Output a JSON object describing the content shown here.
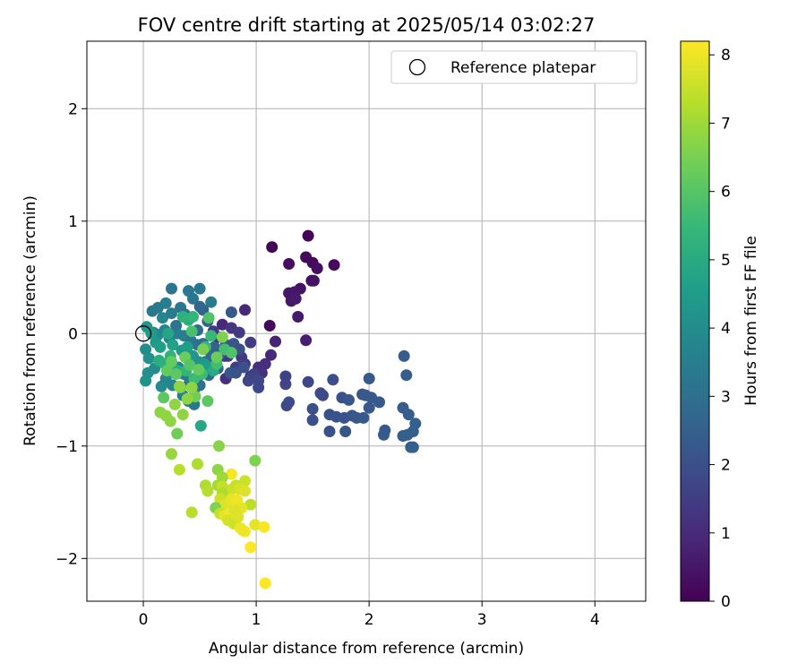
{
  "chart_data": {
    "type": "scatter",
    "title": "FOV centre drift starting at 2025/05/14 03:02:27",
    "xlabel": "Angular distance from reference (arcmin)",
    "ylabel": "Rotation from reference (arcmin)",
    "xlim": [
      -0.5,
      4.45
    ],
    "ylim": [
      -2.38,
      2.6
    ],
    "xticks": [
      0,
      1,
      2,
      3,
      4
    ],
    "xtick_labels": [
      "0",
      "1",
      "2",
      "3",
      "4"
    ],
    "yticks": [
      2,
      1,
      0,
      -1,
      -2
    ],
    "ytick_labels": [
      "2",
      "1",
      "0",
      "−1",
      "−2"
    ],
    "grid": true,
    "legend": {
      "label": "Reference platepar",
      "placement": "top-right"
    },
    "reference_point": {
      "x": 0,
      "y": 0
    },
    "colorbar": {
      "label": "Hours from first FF file",
      "range": [
        0,
        8.2
      ],
      "ticks": [
        8,
        7,
        6,
        5,
        4,
        3,
        2,
        1,
        0
      ],
      "tick_labels": [
        "8",
        "7",
        "6",
        "5",
        "4",
        "3",
        "2",
        "1",
        "0"
      ],
      "colormap": "viridis",
      "stops": [
        "#440154",
        "#482878",
        "#3e4989",
        "#31688e",
        "#26828e",
        "#1f9e89",
        "#35b779",
        "#6ece58",
        "#b5de2b",
        "#fde725"
      ]
    },
    "points": [
      {
        "x": 1.14,
        "y": 0.77,
        "c": 0.1
      },
      {
        "x": 1.46,
        "y": 0.87,
        "c": 0.1
      },
      {
        "x": 1.44,
        "y": 0.68,
        "c": 0.2
      },
      {
        "x": 1.5,
        "y": 0.63,
        "c": 0.2
      },
      {
        "x": 1.54,
        "y": 0.58,
        "c": 0.3
      },
      {
        "x": 1.69,
        "y": 0.61,
        "c": 0.2
      },
      {
        "x": 1.29,
        "y": 0.62,
        "c": 0.3
      },
      {
        "x": 1.49,
        "y": 0.47,
        "c": 0.4
      },
      {
        "x": 1.51,
        "y": 0.47,
        "c": 0.4
      },
      {
        "x": 1.39,
        "y": 0.4,
        "c": 0.4
      },
      {
        "x": 1.34,
        "y": 0.37,
        "c": 0.5
      },
      {
        "x": 1.29,
        "y": 0.36,
        "c": 0.5
      },
      {
        "x": 1.31,
        "y": 0.29,
        "c": 0.5
      },
      {
        "x": 1.35,
        "y": 0.31,
        "c": 0.6
      },
      {
        "x": 1.37,
        "y": 0.15,
        "c": 0.6
      },
      {
        "x": 1.12,
        "y": 0.07,
        "c": 0.2
      },
      {
        "x": 1.44,
        "y": -0.06,
        "c": 0.7
      },
      {
        "x": 1.17,
        "y": -0.07,
        "c": 0.8
      },
      {
        "x": 0.9,
        "y": 0.21,
        "c": 0.9
      },
      {
        "x": 1.13,
        "y": -0.19,
        "c": 0.9
      },
      {
        "x": 1.08,
        "y": -0.27,
        "c": 1.1
      },
      {
        "x": 1.02,
        "y": -0.3,
        "c": 1.1
      },
      {
        "x": 1.05,
        "y": -0.35,
        "c": 1.2
      },
      {
        "x": 0.95,
        "y": -0.38,
        "c": 1.3
      },
      {
        "x": 0.87,
        "y": -0.21,
        "c": 1.4
      },
      {
        "x": 0.9,
        "y": -0.27,
        "c": 1.5
      },
      {
        "x": 0.82,
        "y": -0.3,
        "c": 1.5
      },
      {
        "x": 0.75,
        "y": -0.2,
        "c": 1.6
      },
      {
        "x": 0.98,
        "y": -0.36,
        "c": 1.6
      },
      {
        "x": 0.93,
        "y": -0.42,
        "c": 1.7
      },
      {
        "x": 1.02,
        "y": -0.48,
        "c": 1.8
      },
      {
        "x": 1.02,
        "y": -0.42,
        "c": 1.8
      },
      {
        "x": 0.73,
        "y": -0.4,
        "c": 1.1
      },
      {
        "x": 0.72,
        "y": -0.2,
        "c": 1.3
      },
      {
        "x": 0.7,
        "y": 0.08,
        "c": 1.0
      },
      {
        "x": 0.66,
        "y": -0.03,
        "c": 1.2
      },
      {
        "x": 0.78,
        "y": 0.05,
        "c": 1.3
      },
      {
        "x": 0.85,
        "y": 0.01,
        "c": 1.4
      },
      {
        "x": 0.95,
        "y": -0.08,
        "c": 1.5
      },
      {
        "x": 0.62,
        "y": 0.02,
        "c": 1.4
      },
      {
        "x": 1.26,
        "y": -0.38,
        "c": 1.6
      },
      {
        "x": 1.26,
        "y": -0.45,
        "c": 1.7
      },
      {
        "x": 1.27,
        "y": -0.64,
        "c": 1.8
      },
      {
        "x": 1.29,
        "y": -0.61,
        "c": 1.9
      },
      {
        "x": 1.46,
        "y": -0.43,
        "c": 1.8
      },
      {
        "x": 1.57,
        "y": -0.53,
        "c": 1.9
      },
      {
        "x": 1.59,
        "y": -0.55,
        "c": 1.9
      },
      {
        "x": 1.5,
        "y": -0.67,
        "c": 2.0
      },
      {
        "x": 1.5,
        "y": -0.77,
        "c": 2.0
      },
      {
        "x": 1.65,
        "y": -0.72,
        "c": 2.1
      },
      {
        "x": 1.65,
        "y": -0.87,
        "c": 2.1
      },
      {
        "x": 1.68,
        "y": -0.41,
        "c": 2.0
      },
      {
        "x": 1.71,
        "y": -0.74,
        "c": 2.1
      },
      {
        "x": 1.76,
        "y": -0.57,
        "c": 2.1
      },
      {
        "x": 1.78,
        "y": -0.75,
        "c": 2.1
      },
      {
        "x": 1.79,
        "y": -0.87,
        "c": 2.2
      },
      {
        "x": 1.82,
        "y": -0.59,
        "c": 2.2
      },
      {
        "x": 1.85,
        "y": -0.73,
        "c": 2.2
      },
      {
        "x": 1.89,
        "y": -0.75,
        "c": 2.2
      },
      {
        "x": 1.94,
        "y": -0.54,
        "c": 2.2
      },
      {
        "x": 1.95,
        "y": -0.75,
        "c": 2.3
      },
      {
        "x": 1.97,
        "y": -0.55,
        "c": 2.3
      },
      {
        "x": 2.0,
        "y": -0.4,
        "c": 2.3
      },
      {
        "x": 2.02,
        "y": -0.57,
        "c": 2.3
      },
      {
        "x": 2.0,
        "y": -0.66,
        "c": 2.3
      },
      {
        "x": 2.09,
        "y": -0.61,
        "c": 2.3
      },
      {
        "x": 2.13,
        "y": -0.9,
        "c": 2.3
      },
      {
        "x": 2.14,
        "y": -0.86,
        "c": 2.3
      },
      {
        "x": 2.31,
        "y": -0.2,
        "c": 2.4
      },
      {
        "x": 2.33,
        "y": -0.37,
        "c": 2.4
      },
      {
        "x": 2.3,
        "y": -0.66,
        "c": 2.4
      },
      {
        "x": 2.35,
        "y": -0.72,
        "c": 2.4
      },
      {
        "x": 2.3,
        "y": -0.91,
        "c": 2.4
      },
      {
        "x": 2.34,
        "y": -0.9,
        "c": 2.5
      },
      {
        "x": 2.39,
        "y": -0.87,
        "c": 2.5
      },
      {
        "x": 2.41,
        "y": -0.8,
        "c": 2.5
      },
      {
        "x": 2.37,
        "y": -1.01,
        "c": 2.5
      },
      {
        "x": 2.39,
        "y": -1.01,
        "c": 2.5
      },
      {
        "x": 0.5,
        "y": 0.4,
        "c": 3.3
      },
      {
        "x": 0.4,
        "y": 0.38,
        "c": 3.3
      },
      {
        "x": 0.25,
        "y": 0.4,
        "c": 3.2
      },
      {
        "x": 0.6,
        "y": 0.28,
        "c": 3.4
      },
      {
        "x": 0.44,
        "y": 0.31,
        "c": 3.2
      },
      {
        "x": 0.2,
        "y": 0.27,
        "c": 3.5
      },
      {
        "x": 0.13,
        "y": 0.23,
        "c": 3.4
      },
      {
        "x": 0.08,
        "y": 0.2,
        "c": 3.3
      },
      {
        "x": 0.33,
        "y": 0.23,
        "c": 3.3
      },
      {
        "x": 0.53,
        "y": 0.21,
        "c": 2.5
      },
      {
        "x": 0.78,
        "y": 0.19,
        "c": 2.3
      },
      {
        "x": 0.17,
        "y": 0.14,
        "c": 3.8
      },
      {
        "x": 0.37,
        "y": 0.17,
        "c": 3.0
      },
      {
        "x": 0.57,
        "y": 0.11,
        "c": 2.6
      },
      {
        "x": 0.48,
        "y": 0.03,
        "c": 2.8
      },
      {
        "x": 0.29,
        "y": 0.07,
        "c": 3.1
      },
      {
        "x": 0.03,
        "y": 0.06,
        "c": 4.3
      },
      {
        "x": 0.09,
        "y": 0.01,
        "c": 4.1
      },
      {
        "x": 0.13,
        "y": -0.01,
        "c": 3.9
      },
      {
        "x": 0.19,
        "y": 0.03,
        "c": 3.7
      },
      {
        "x": 0.23,
        "y": -0.04,
        "c": 3.6
      },
      {
        "x": 0.3,
        "y": 0.0,
        "c": 3.4
      },
      {
        "x": 0.36,
        "y": -0.02,
        "c": 3.5
      },
      {
        "x": 0.42,
        "y": -0.06,
        "c": 3.3
      },
      {
        "x": 0.48,
        "y": -0.1,
        "c": 3.1
      },
      {
        "x": 0.53,
        "y": -0.09,
        "c": 2.9
      },
      {
        "x": 0.58,
        "y": -0.15,
        "c": 2.7
      },
      {
        "x": 0.63,
        "y": -0.12,
        "c": 2.6
      },
      {
        "x": 0.68,
        "y": -0.18,
        "c": 2.4
      },
      {
        "x": 0.73,
        "y": -0.1,
        "c": 2.3
      },
      {
        "x": 0.8,
        "y": -0.09,
        "c": 2.2
      },
      {
        "x": 0.85,
        "y": -0.14,
        "c": 2.0
      },
      {
        "x": 0.89,
        "y": -0.3,
        "c": 2.0
      },
      {
        "x": 0.77,
        "y": -0.35,
        "c": 2.2
      },
      {
        "x": 0.82,
        "y": -0.35,
        "c": 2.1
      },
      {
        "x": 0.66,
        "y": -0.31,
        "c": 2.6
      },
      {
        "x": 0.58,
        "y": -0.37,
        "c": 2.9
      },
      {
        "x": 0.02,
        "y": -0.14,
        "c": 4.0
      },
      {
        "x": 0.05,
        "y": -0.22,
        "c": 4.1
      },
      {
        "x": 0.04,
        "y": -0.35,
        "c": 4.1
      },
      {
        "x": 0.02,
        "y": -0.42,
        "c": 4.2
      },
      {
        "x": 0.1,
        "y": -0.31,
        "c": 4.0
      },
      {
        "x": 0.16,
        "y": -0.47,
        "c": 3.9
      },
      {
        "x": 0.2,
        "y": -0.4,
        "c": 3.8
      },
      {
        "x": 0.26,
        "y": -0.46,
        "c": 3.7
      },
      {
        "x": 0.31,
        "y": -0.3,
        "c": 3.6
      },
      {
        "x": 0.36,
        "y": -0.36,
        "c": 3.4
      },
      {
        "x": 0.41,
        "y": -0.43,
        "c": 3.3
      },
      {
        "x": 0.45,
        "y": -0.5,
        "c": 3.2
      },
      {
        "x": 0.35,
        "y": -0.55,
        "c": 3.5
      },
      {
        "x": 0.4,
        "y": -0.6,
        "c": 3.4
      },
      {
        "x": 0.45,
        "y": -0.63,
        "c": 3.3
      },
      {
        "x": 0.5,
        "y": -0.46,
        "c": 3.1
      },
      {
        "x": 0.55,
        "y": -0.25,
        "c": 3.0
      },
      {
        "x": 0.6,
        "y": -0.22,
        "c": 2.8
      },
      {
        "x": 0.5,
        "y": 0.24,
        "c": 2.7
      },
      {
        "x": 0.25,
        "y": 0.18,
        "c": 3.4
      },
      {
        "x": 0.07,
        "y": 0.0,
        "c": 4.5
      },
      {
        "x": 0.11,
        "y": -0.08,
        "c": 4.4
      },
      {
        "x": 0.15,
        "y": -0.12,
        "c": 4.6
      },
      {
        "x": 0.22,
        "y": 0.0,
        "c": 4.8
      },
      {
        "x": 0.26,
        "y": -0.1,
        "c": 4.7
      },
      {
        "x": 0.34,
        "y": -0.15,
        "c": 4.4
      },
      {
        "x": 0.39,
        "y": -0.12,
        "c": 4.6
      },
      {
        "x": 0.44,
        "y": -0.2,
        "c": 4.3
      },
      {
        "x": 0.49,
        "y": -0.25,
        "c": 4.2
      },
      {
        "x": 0.54,
        "y": -0.27,
        "c": 4.4
      },
      {
        "x": 0.59,
        "y": -0.3,
        "c": 4.6
      },
      {
        "x": 0.62,
        "y": -0.33,
        "c": 5.0
      },
      {
        "x": 0.4,
        "y": 0.12,
        "c": 5.1
      },
      {
        "x": 0.35,
        "y": 0.15,
        "c": 5.2
      },
      {
        "x": 0.44,
        "y": 0.15,
        "c": 5.4
      },
      {
        "x": 0.51,
        "y": -0.82,
        "c": 4.9
      },
      {
        "x": 0.14,
        "y": -0.24,
        "c": 5.1
      },
      {
        "x": 0.19,
        "y": -0.27,
        "c": 5.2
      },
      {
        "x": 0.24,
        "y": -0.2,
        "c": 5.3
      },
      {
        "x": 0.3,
        "y": -0.33,
        "c": 5.1
      },
      {
        "x": 0.38,
        "y": -0.33,
        "c": 5.4
      },
      {
        "x": 0.45,
        "y": -0.4,
        "c": 5.6
      },
      {
        "x": 0.52,
        "y": -0.36,
        "c": 5.6
      },
      {
        "x": 0.43,
        "y": 0.02,
        "c": 5.8
      },
      {
        "x": 0.55,
        "y": -0.12,
        "c": 5.5
      },
      {
        "x": 0.6,
        "y": -0.02,
        "c": 5.5
      },
      {
        "x": 0.65,
        "y": -0.27,
        "c": 5.7
      },
      {
        "x": 0.72,
        "y": -0.14,
        "c": 5.7
      },
      {
        "x": 0.58,
        "y": 0.14,
        "c": 5.9
      },
      {
        "x": 0.78,
        "y": -0.17,
        "c": 5.9
      },
      {
        "x": 0.18,
        "y": -0.57,
        "c": 6.1
      },
      {
        "x": 0.21,
        "y": -0.33,
        "c": 6.2
      },
      {
        "x": 0.25,
        "y": -0.25,
        "c": 6.2
      },
      {
        "x": 0.29,
        "y": -0.36,
        "c": 6.1
      },
      {
        "x": 0.33,
        "y": -0.48,
        "c": 6.3
      },
      {
        "x": 0.37,
        "y": -0.21,
        "c": 6.3
      },
      {
        "x": 0.41,
        "y": -0.28,
        "c": 6.0
      },
      {
        "x": 0.46,
        "y": -0.56,
        "c": 6.4
      },
      {
        "x": 0.49,
        "y": -0.32,
        "c": 6.2
      },
      {
        "x": 0.53,
        "y": -0.14,
        "c": 6.5
      },
      {
        "x": 0.57,
        "y": -0.6,
        "c": 6.1
      },
      {
        "x": 0.65,
        "y": -0.21,
        "c": 6.3
      },
      {
        "x": 0.7,
        "y": -0.03,
        "c": 6.6
      },
      {
        "x": 0.15,
        "y": -0.7,
        "c": 6.8
      },
      {
        "x": 0.2,
        "y": -0.73,
        "c": 6.8
      },
      {
        "x": 0.24,
        "y": -0.78,
        "c": 6.8
      },
      {
        "x": 0.28,
        "y": -0.63,
        "c": 6.8
      },
      {
        "x": 0.32,
        "y": -0.47,
        "c": 6.8
      },
      {
        "x": 0.35,
        "y": -0.72,
        "c": 6.8
      },
      {
        "x": 0.39,
        "y": -0.58,
        "c": 6.8
      },
      {
        "x": 0.43,
        "y": -0.48,
        "c": 6.8
      },
      {
        "x": 0.3,
        "y": -0.89,
        "c": 6.4
      },
      {
        "x": 0.67,
        "y": -1.0,
        "c": 6.7
      },
      {
        "x": 0.25,
        "y": -1.07,
        "c": 6.9
      },
      {
        "x": 0.32,
        "y": -1.21,
        "c": 7.3
      },
      {
        "x": 0.48,
        "y": -1.16,
        "c": 7.2
      },
      {
        "x": 0.66,
        "y": -1.21,
        "c": 6.8
      },
      {
        "x": 0.99,
        "y": -1.13,
        "c": 6.6
      },
      {
        "x": 0.78,
        "y": -1.25,
        "c": 8.1
      },
      {
        "x": 0.9,
        "y": -1.31,
        "c": 7.6
      },
      {
        "x": 0.7,
        "y": -1.28,
        "c": 7.0
      },
      {
        "x": 0.55,
        "y": -1.35,
        "c": 7.2
      },
      {
        "x": 0.57,
        "y": -1.4,
        "c": 7.3
      },
      {
        "x": 0.66,
        "y": -1.35,
        "c": 7.1
      },
      {
        "x": 0.7,
        "y": -1.36,
        "c": 7.5
      },
      {
        "x": 0.74,
        "y": -1.4,
        "c": 7.4
      },
      {
        "x": 0.79,
        "y": -1.38,
        "c": 7.6
      },
      {
        "x": 0.82,
        "y": -1.35,
        "c": 7.5
      },
      {
        "x": 0.85,
        "y": -1.38,
        "c": 7.7
      },
      {
        "x": 0.9,
        "y": -1.4,
        "c": 7.8
      },
      {
        "x": 0.95,
        "y": -1.52,
        "c": 7.4
      },
      {
        "x": 0.7,
        "y": -1.42,
        "c": 7.2
      },
      {
        "x": 0.68,
        "y": -1.47,
        "c": 7.6
      },
      {
        "x": 0.73,
        "y": -1.52,
        "c": 7.8
      },
      {
        "x": 0.78,
        "y": -1.47,
        "c": 7.9
      },
      {
        "x": 0.83,
        "y": -1.48,
        "c": 8.0
      },
      {
        "x": 0.87,
        "y": -1.55,
        "c": 7.9
      },
      {
        "x": 0.64,
        "y": -1.55,
        "c": 6.6
      },
      {
        "x": 0.68,
        "y": -1.6,
        "c": 7.5
      },
      {
        "x": 0.72,
        "y": -1.62,
        "c": 7.9
      },
      {
        "x": 0.77,
        "y": -1.6,
        "c": 8.1
      },
      {
        "x": 0.81,
        "y": -1.57,
        "c": 7.8
      },
      {
        "x": 0.75,
        "y": -1.66,
        "c": 7.7
      },
      {
        "x": 0.8,
        "y": -1.69,
        "c": 7.6
      },
      {
        "x": 0.43,
        "y": -1.59,
        "c": 7.3
      },
      {
        "x": 0.86,
        "y": -1.73,
        "c": 8.0
      },
      {
        "x": 0.9,
        "y": -1.76,
        "c": 8.1
      },
      {
        "x": 0.99,
        "y": -1.7,
        "c": 7.9
      },
      {
        "x": 1.07,
        "y": -1.72,
        "c": 8.1
      },
      {
        "x": 0.95,
        "y": -1.9,
        "c": 8.2
      },
      {
        "x": 1.08,
        "y": -2.22,
        "c": 8.2
      },
      {
        "x": 0.88,
        "y": -1.75,
        "c": 8.0
      },
      {
        "x": 0.84,
        "y": -1.63,
        "c": 7.8
      }
    ]
  }
}
